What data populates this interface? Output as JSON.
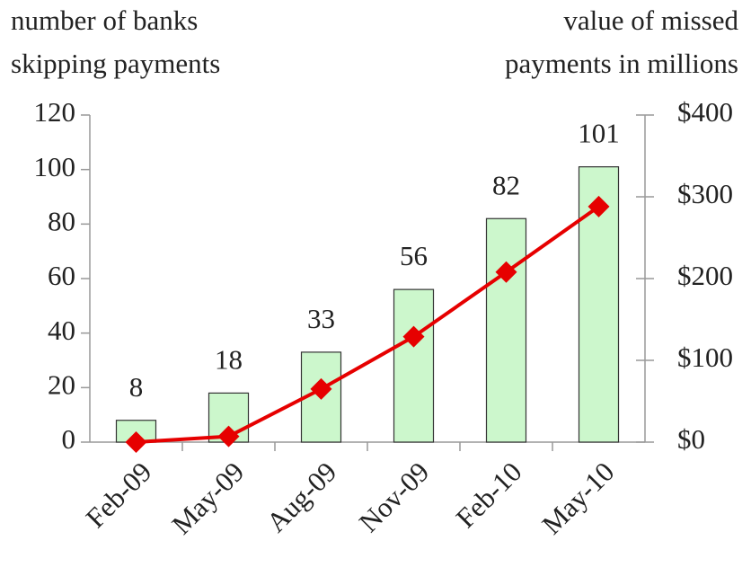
{
  "chart_data": {
    "type": "bar-line",
    "ylabel": [
      "number of banks",
      "skipping payments"
    ],
    "y2label": [
      "value of missed",
      "payments in millions"
    ],
    "categories": [
      "Feb-09",
      "May-09",
      "Aug-09",
      "Nov-09",
      "Feb-10",
      "May-10"
    ],
    "series": [
      {
        "type": "bar",
        "color": "#ccf7cc",
        "values": [
          8,
          18,
          33,
          56,
          82,
          101
        ]
      },
      {
        "type": "line",
        "axis": "y2",
        "color": "#e60000",
        "values": [
          0,
          7,
          65,
          129,
          208,
          288
        ]
      }
    ],
    "ylim": [
      0,
      120
    ],
    "yticks": [
      0,
      20,
      40,
      60,
      80,
      100,
      120
    ],
    "y2lim": [
      0,
      400
    ],
    "y2ticks": [
      {
        "value": 0,
        "label": "$0"
      },
      {
        "value": 100,
        "label": "$100"
      },
      {
        "value": 200,
        "label": "$200"
      },
      {
        "value": 300,
        "label": "$300"
      },
      {
        "value": 400,
        "label": "$400"
      }
    ]
  }
}
